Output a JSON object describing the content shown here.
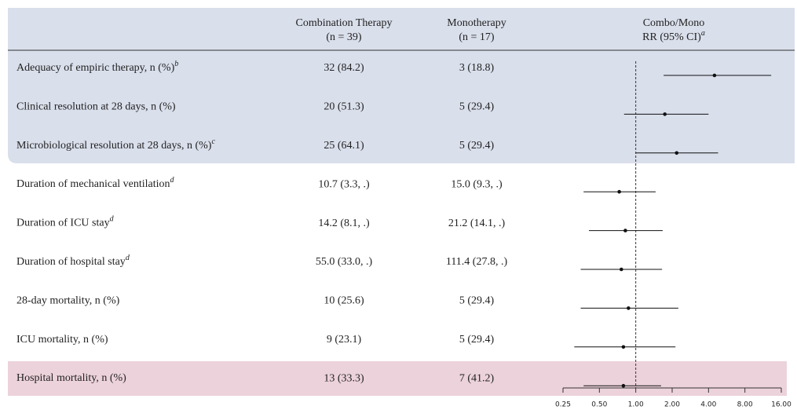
{
  "table": {
    "headers": {
      "combo": [
        "Combination Therapy",
        "(n = 39)"
      ],
      "mono": [
        "Monotherapy",
        "(n = 17)"
      ],
      "rr": [
        "Combo/Mono",
        "RR (95% CI)"
      ],
      "rr_note": "a"
    },
    "rows": [
      {
        "label": "Adequacy of empiric therapy, n (%)",
        "note": "b",
        "combo": "32 (84.2)",
        "mono": "3 (18.8)"
      },
      {
        "label": "Clinical resolution at 28 days, n (%)",
        "combo": "20 (51.3)",
        "mono": "5 (29.4)"
      },
      {
        "label": "Microbiological resolution at 28 days, n (%)",
        "note": "c",
        "combo": "25 (64.1)",
        "mono": "5 (29.4)"
      },
      {
        "label": "Duration of mechanical ventilation",
        "note": "d",
        "combo": "10.7 (3.3, .)",
        "mono": "15.0 (9.3, .)"
      },
      {
        "label": "Duration of ICU stay",
        "note": "d",
        "combo": "14.2 (8.1, .)",
        "mono": "21.2 (14.1, .)"
      },
      {
        "label": "Duration of hospital stay",
        "note": "d",
        "combo": "55.0 (33.0, .)",
        "mono": "111.4 (27.8, .)"
      },
      {
        "label": "28-day mortality, n (%)",
        "combo": "10 (25.6)",
        "mono": "5 (29.4)"
      },
      {
        "label": "ICU mortality, n (%)",
        "combo": "9 (23.1)",
        "mono": "5 (29.4)"
      },
      {
        "label": "Hospital mortality, n (%)",
        "combo": "13 (33.3)",
        "mono": "7 (41.2)"
      }
    ]
  },
  "chart_data": {
    "type": "forest",
    "log_scale": true,
    "reference_line": 1,
    "xlim": [
      0.25,
      16
    ],
    "xticks": [
      0.25,
      {
        "value": 0.5,
        "label": "0.50"
      },
      {
        "value": 1,
        "label": "1.00"
      },
      {
        "value": 2,
        "label": "2.00"
      },
      {
        "value": 4,
        "label": "4.00"
      },
      {
        "value": 8,
        "label": "8.00"
      },
      {
        "value": 16,
        "label": "16.00"
      }
    ],
    "values": [
      4.48,
      1.74,
      2.18,
      0.73,
      0.82,
      0.76,
      0.87,
      0.79,
      0.79
    ],
    "lower": [
      1.7,
      0.8,
      1.0,
      0.37,
      0.41,
      0.35,
      0.35,
      0.31,
      0.37
    ],
    "upper": [
      13.2,
      4.0,
      4.8,
      1.46,
      1.67,
      1.65,
      2.25,
      2.13,
      1.62
    ],
    "color": "#111111"
  }
}
